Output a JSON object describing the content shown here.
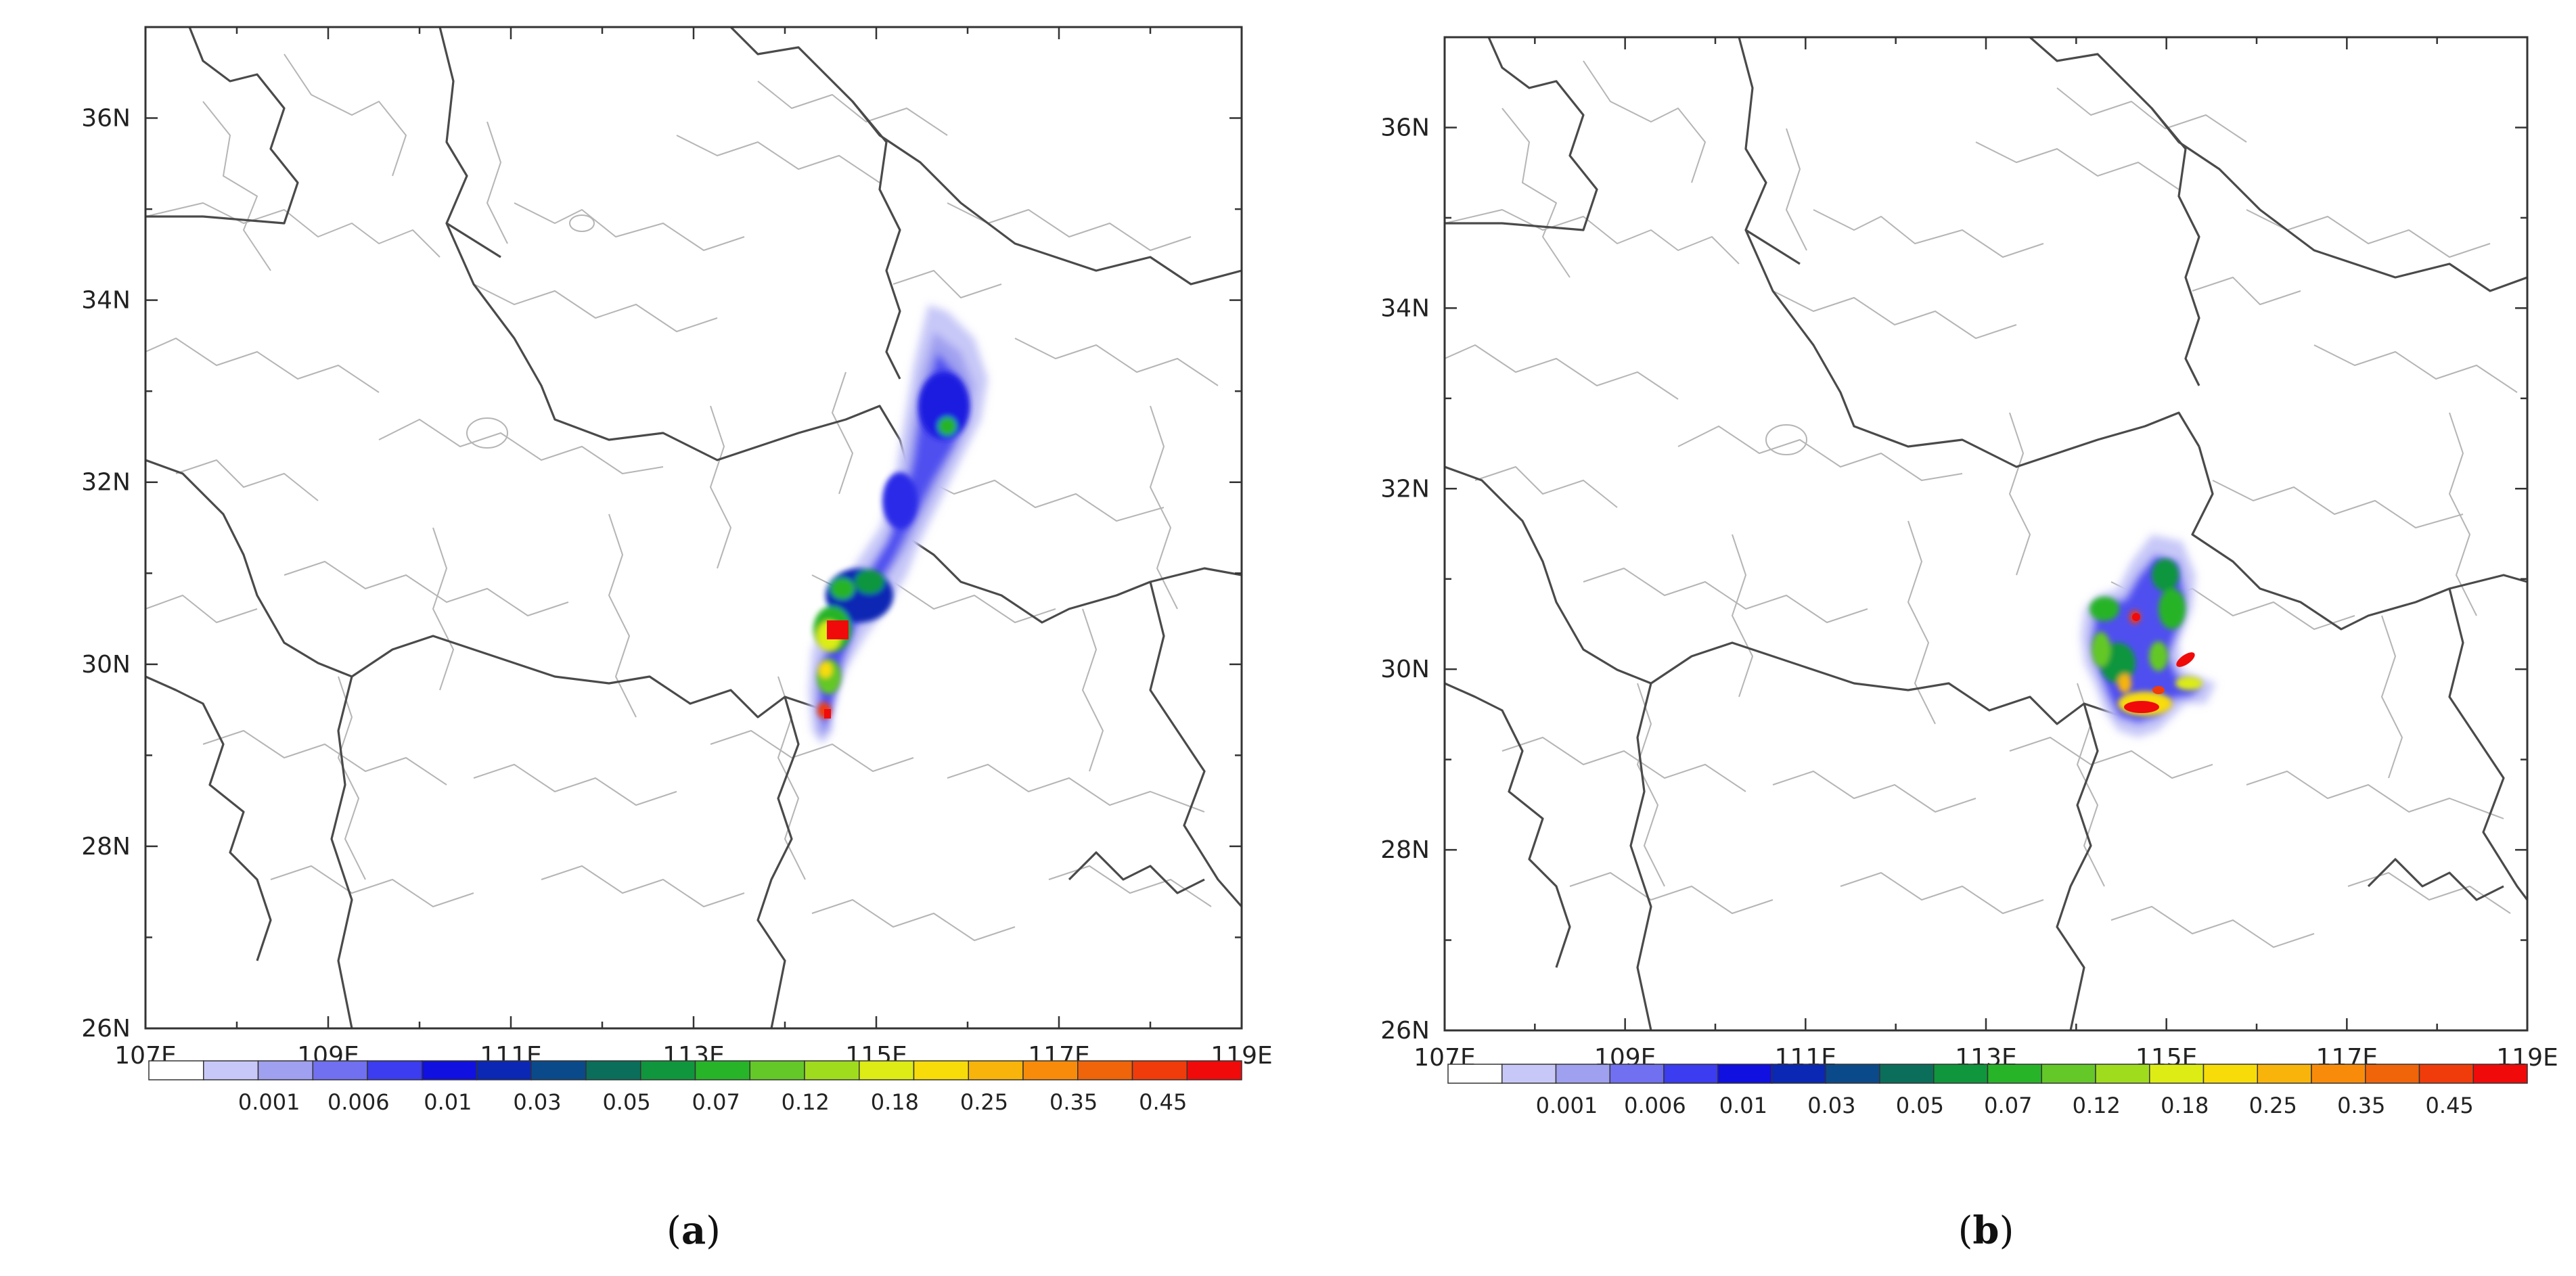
{
  "panels": [
    {
      "id": "a",
      "label_open": "(",
      "label_letter": "a",
      "label_close": ")"
    },
    {
      "id": "b",
      "label_open": "(",
      "label_letter": "b",
      "label_close": ")"
    }
  ],
  "axes": {
    "lon_labels": [
      "107E",
      "109E",
      "111E",
      "113E",
      "115E",
      "117E",
      "119E"
    ],
    "lat_labels": [
      "36N",
      "34N",
      "32N",
      "30N",
      "28N",
      "26N"
    ],
    "lon_range": [
      107,
      119
    ],
    "lat_range": [
      26,
      37
    ]
  },
  "colorbar": {
    "labels": [
      "0.001",
      "0.006",
      "0.01",
      "0.03",
      "0.05",
      "0.07",
      "0.12",
      "0.18",
      "0.25",
      "0.35",
      "0.45"
    ],
    "colors": [
      "#ffffff",
      "#c8c8f8",
      "#a0a0f0",
      "#7070f0",
      "#3c3cf0",
      "#1010e0",
      "#0a28b4",
      "#0a4a8a",
      "#0a6e5a",
      "#10963c",
      "#28b428",
      "#64c828",
      "#a0dc1e",
      "#dcec14",
      "#f8dc0a",
      "#f8b40a",
      "#f88c0a",
      "#f0640a",
      "#f03c0a",
      "#f00a0a"
    ]
  }
}
